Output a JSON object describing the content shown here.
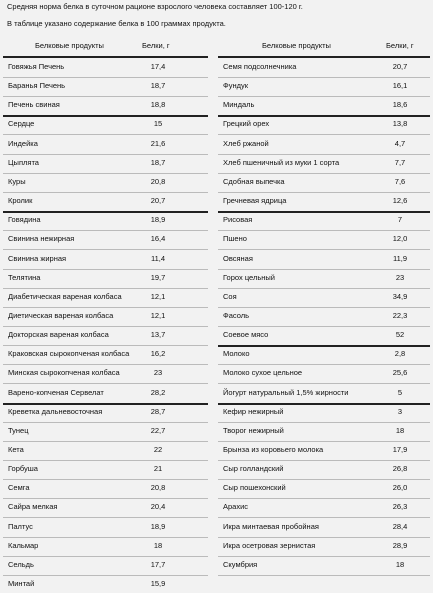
{
  "intro": [
    "Средняя норма белка в суточном рационе взрослого человека составляет 100-120 г.",
    "В таблице указано содержание белка в 100 граммах продукта."
  ],
  "table": {
    "header": [
      "Белковые продукты",
      "Белки, г",
      "Белковые продукты",
      "Белки, г"
    ],
    "left_rows": [
      [
        "Говяжья Печень",
        "17,4"
      ],
      [
        "Баранья Печень",
        "18,7"
      ],
      [
        "Печень свиная",
        "18,8"
      ],
      [
        "Сердце",
        "15"
      ],
      [
        "Индейка",
        "21,6"
      ],
      [
        "Цыплята",
        "18,7"
      ],
      [
        "Куры",
        "20,8"
      ],
      [
        "Кролик",
        "20,7"
      ],
      [
        "Говядина",
        "18,9"
      ],
      [
        "Свинина нежирная",
        "16,4"
      ],
      [
        "Свинина жирная",
        "11,4"
      ],
      [
        "Телятина",
        "19,7"
      ],
      [
        "Диабетическая вареная колбаса",
        "12,1"
      ],
      [
        "Диетическая вареная колбаса",
        "12,1"
      ],
      [
        "Докторская вареная колбаса",
        "13,7"
      ],
      [
        "Краковская сырокопченая колбаса",
        "16,2"
      ],
      [
        "Минская сырокопченая колбаса",
        "23"
      ],
      [
        "Варено-копченая Сервелат",
        "28,2"
      ],
      [
        "Креветка дальневосточная",
        "28,7"
      ],
      [
        "Тунец",
        "22,7"
      ],
      [
        "Кета",
        "22"
      ],
      [
        "Горбуша",
        "21"
      ],
      [
        "Семга",
        "20,8"
      ],
      [
        "Сайра мелкая",
        "20,4"
      ],
      [
        "Палтус",
        "18,9"
      ],
      [
        "Кальмар",
        "18"
      ],
      [
        "Сельдь",
        "17,7"
      ],
      [
        "Минтай",
        "15,9"
      ]
    ],
    "right_rows": [
      [
        "Семя подсолнечника",
        "20,7"
      ],
      [
        "Фундук",
        "16,1"
      ],
      [
        "Миндаль",
        "18,6"
      ],
      [
        "Грецкий орех",
        "13,8"
      ],
      [
        "Хлеб ржаной",
        "4,7"
      ],
      [
        "Хлеб пшеничный из муки 1 сорта",
        "7,7"
      ],
      [
        "Сдобная выпечка",
        "7,6"
      ],
      [
        "Гречневая ядрица",
        "12,6"
      ],
      [
        "Рисовая",
        "7"
      ],
      [
        "Пшено",
        "12,0"
      ],
      [
        "Овсяная",
        "11,9"
      ],
      [
        "Горох цельный",
        "23"
      ],
      [
        "Соя",
        "34,9"
      ],
      [
        "Фасоль",
        "22,3"
      ],
      [
        "Соевое мясо",
        "52"
      ],
      [
        "Молоко",
        "2,8"
      ],
      [
        "Молоко сухое цельное",
        "25,6"
      ],
      [
        "Йогурт натуральный 1,5% жирности",
        "5"
      ],
      [
        "Кефир нежирный",
        "3"
      ],
      [
        "Творог нежирный",
        "18"
      ],
      [
        "Брынза из коровьего молока",
        "17,9"
      ],
      [
        "Сыр голландский",
        "26,8"
      ],
      [
        "Сыр пошехонский",
        "26,0"
      ],
      [
        "Арахис",
        "26,3"
      ],
      [
        "Икра минтаевая пробойная",
        "28,4"
      ],
      [
        "Икра осетровая зернистая",
        "28,9"
      ],
      [
        "Скумбрия",
        "18"
      ]
    ]
  }
}
